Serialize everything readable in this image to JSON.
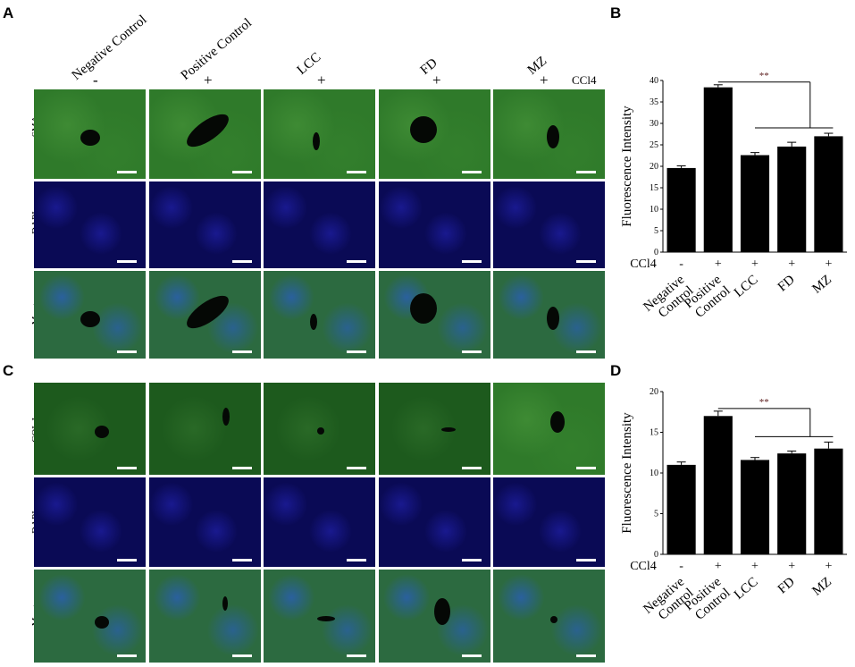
{
  "panels": {
    "A": "A",
    "B": "B",
    "C": "C",
    "D": "D"
  },
  "column_labels": [
    "Negative Control",
    "Positive Control",
    "LCC",
    "FD",
    "MZ"
  ],
  "ccl4_markers": [
    "-",
    "+",
    "+",
    "+",
    "+"
  ],
  "ccl4_label": "CCl4",
  "panel_a_rows": [
    "α-SMA",
    "DAPI",
    "Merge"
  ],
  "panel_c_rows": [
    "COL I",
    "DAPI",
    "Merge"
  ],
  "significance": "**",
  "chart_data": [
    {
      "type": "bar",
      "panel": "B",
      "categories": [
        "Negative Control",
        "Positive Control",
        "LCC",
        "FD",
        "MZ"
      ],
      "values": [
        19.6,
        38.4,
        22.6,
        24.6,
        27.0
      ],
      "errors": [
        0.5,
        0.6,
        0.6,
        1.0,
        0.7
      ],
      "ylabel": "Fluorescence Intensity",
      "ylim": [
        0,
        40
      ],
      "yticks": [
        0,
        5,
        10,
        15,
        20,
        25,
        30,
        35,
        40
      ],
      "ccl4": [
        "-",
        "+",
        "+",
        "+",
        "+"
      ],
      "annotation": "**"
    },
    {
      "type": "bar",
      "panel": "D",
      "categories": [
        "Negative Control",
        "Positive Control",
        "LCC",
        "FD",
        "MZ"
      ],
      "values": [
        11.0,
        17.0,
        11.6,
        12.4,
        13.0
      ],
      "errors": [
        0.35,
        0.6,
        0.3,
        0.3,
        0.8
      ],
      "ylabel": "Fluorescence Intensity",
      "ylim": [
        0,
        20
      ],
      "yticks": [
        0,
        5,
        10,
        15,
        20
      ],
      "ccl4": [
        "-",
        "+",
        "+",
        "+",
        "+"
      ],
      "annotation": "**"
    }
  ]
}
